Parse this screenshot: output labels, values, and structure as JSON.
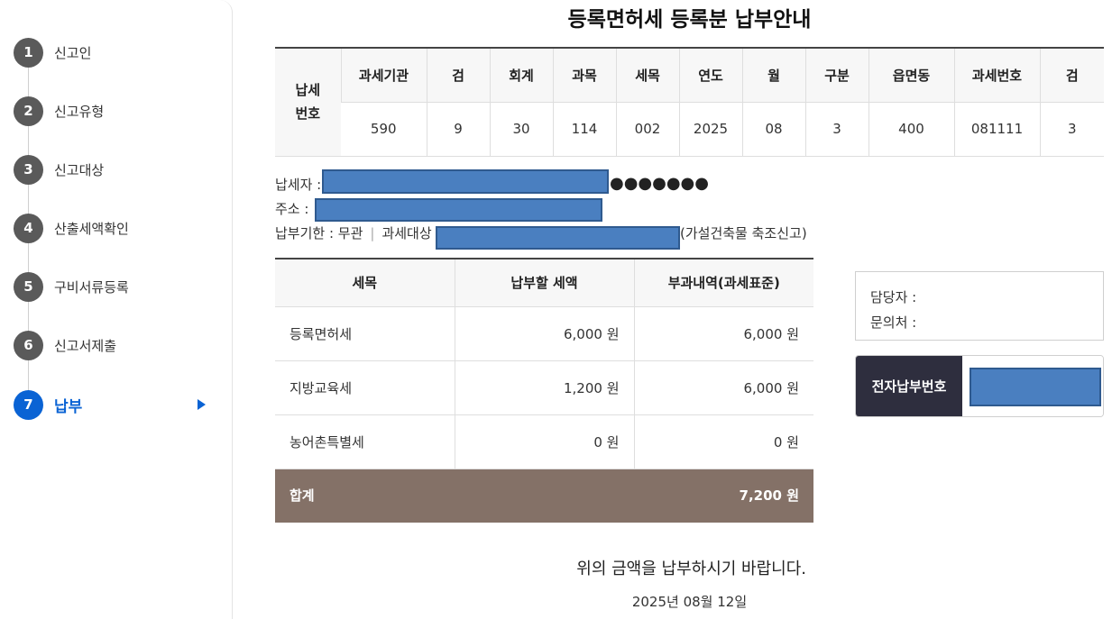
{
  "sidebar": {
    "steps": [
      {
        "num": "1",
        "label": "신고인"
      },
      {
        "num": "2",
        "label": "신고유형"
      },
      {
        "num": "3",
        "label": "신고대상"
      },
      {
        "num": "4",
        "label": "산출세액확인"
      },
      {
        "num": "5",
        "label": "구비서류등록"
      },
      {
        "num": "6",
        "label": "신고서제출"
      },
      {
        "num": "7",
        "label": "납부"
      }
    ],
    "active_step": "7"
  },
  "title": "등록면허세 등록분 납부안내",
  "tax_number": {
    "row_label": "납세\n번호",
    "headers": [
      "과세기관",
      "검",
      "회계",
      "과목",
      "세목",
      "연도",
      "월",
      "구분",
      "읍면동",
      "과세번호",
      "검"
    ],
    "values": [
      "590",
      "9",
      "30",
      "114",
      "002",
      "2025",
      "08",
      "3",
      "400",
      "081111",
      "3"
    ]
  },
  "info": {
    "taxpayer_label": "납세자 :",
    "taxpayer_masked": "●●●●●●●",
    "address_label": "주소 :",
    "due_label": "납부기한 : 무관",
    "target_label": "과세대상",
    "target_suffix": "(가설건축물 축조신고)"
  },
  "amount_table": {
    "headers": [
      "세목",
      "납부할 세액",
      "부과내역(과세표준)"
    ],
    "rows": [
      {
        "item": "등록면허세",
        "tax": "6,000 원",
        "base": "6,000 원"
      },
      {
        "item": "지방교육세",
        "tax": "1,200 원",
        "base": "6,000 원"
      },
      {
        "item": "농어촌특별세",
        "tax": "0 원",
        "base": "0 원"
      }
    ],
    "total": {
      "label": "합계",
      "amount": "7,200 원"
    }
  },
  "contact": {
    "manager_label": "담당자 :",
    "inquiry_label": "문의처 :"
  },
  "epay": {
    "label": "전자납부번호"
  },
  "notice": "위의 금액을 납부하시기 바랍니다.",
  "date": "2025년 08월 12일",
  "colors": {
    "accent": "#0a63d4",
    "step_gray": "#5a5a5a",
    "total_row": "#847167",
    "epay_label_bg": "#2e2e3e",
    "redaction": "#4a7fc0"
  }
}
